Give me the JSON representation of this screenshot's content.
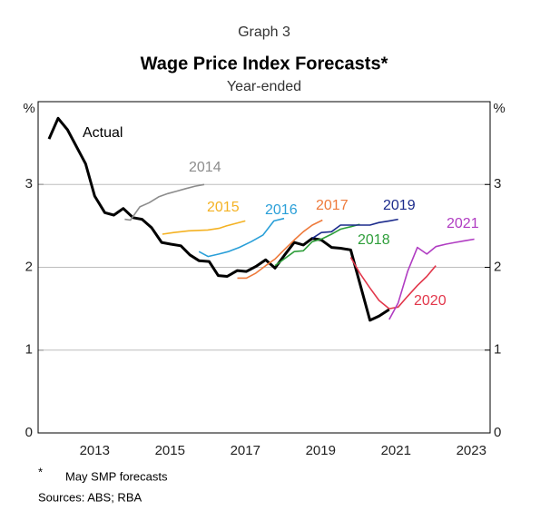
{
  "chart_data": {
    "type": "line",
    "label": "Graph 3",
    "title": "Wage Price Index Forecasts*",
    "subtitle": "Year-ended",
    "ylabel": "%",
    "y2label": "%",
    "xlim": [
      2012,
      2024
    ],
    "xticks": [
      {
        "value": 2013.5,
        "label": "2013"
      },
      {
        "value": 2015.5,
        "label": "2015"
      },
      {
        "value": 2017.5,
        "label": "2017"
      },
      {
        "value": 2019.5,
        "label": "2019"
      },
      {
        "value": 2021.5,
        "label": "2021"
      },
      {
        "value": 2023.5,
        "label": "2023"
      }
    ],
    "ylim": [
      0,
      4
    ],
    "yticks": [
      0,
      1,
      2,
      3
    ],
    "y2lim": [
      0,
      4
    ],
    "y2ticks": [
      0,
      1,
      2,
      3
    ],
    "grid": true,
    "series": [
      {
        "name": "Actual",
        "color": "#000000",
        "x": [
          2012.29,
          2012.53,
          2012.78,
          2013.26,
          2013.5,
          2013.77,
          2014.01,
          2014.26,
          2014.52,
          2014.76,
          2015.01,
          2015.28,
          2015.52,
          2015.79,
          2016.03,
          2016.27,
          2016.54,
          2016.78,
          2017.02,
          2017.29,
          2017.53,
          2017.78,
          2018.04,
          2018.29,
          2018.53,
          2018.8,
          2019.04,
          2019.28,
          2019.52,
          2019.79,
          2020.03,
          2020.3,
          2020.81,
          2021.05,
          2021.32
        ],
        "values": [
          3.55,
          3.8,
          3.66,
          3.25,
          2.86,
          2.66,
          2.63,
          2.71,
          2.6,
          2.58,
          2.48,
          2.3,
          2.28,
          2.26,
          2.15,
          2.08,
          2.07,
          1.9,
          1.89,
          1.96,
          1.95,
          2.01,
          2.09,
          1.99,
          2.14,
          2.3,
          2.27,
          2.35,
          2.33,
          2.24,
          2.23,
          2.21,
          1.36,
          1.41,
          1.49
        ]
      },
      {
        "name": "2014",
        "color": "#8c8c8c",
        "x": [
          2014.3,
          2014.45,
          2014.7,
          2014.95,
          2015.2,
          2015.44,
          2015.68,
          2015.92,
          2016.17,
          2016.41
        ],
        "values": [
          2.58,
          2.57,
          2.73,
          2.78,
          2.85,
          2.89,
          2.92,
          2.95,
          2.98,
          3.0
        ]
      },
      {
        "name": "2015",
        "color": "#f4b223",
        "x": [
          2015.3,
          2015.6,
          2016.0,
          2016.5,
          2016.8,
          2017.0,
          2017.5
        ],
        "values": [
          2.4,
          2.42,
          2.44,
          2.45,
          2.47,
          2.5,
          2.56
        ]
      },
      {
        "name": "2016",
        "color": "#2a9fd8",
        "x": [
          2016.27,
          2016.51,
          2016.8,
          2017.05,
          2017.34,
          2017.66,
          2017.97,
          2018.26,
          2018.53
        ],
        "values": [
          2.19,
          2.13,
          2.16,
          2.19,
          2.24,
          2.31,
          2.39,
          2.56,
          2.59
        ]
      },
      {
        "name": "2017",
        "color": "#ee7a3b",
        "x": [
          2017.29,
          2017.53,
          2017.78,
          2018.04,
          2018.29,
          2018.53,
          2018.8,
          2019.04,
          2019.28,
          2019.55
        ],
        "values": [
          1.87,
          1.87,
          1.93,
          2.02,
          2.1,
          2.21,
          2.33,
          2.43,
          2.51,
          2.57
        ]
      },
      {
        "name": "2018",
        "color": "#2e9e3a",
        "x": [
          2018.29,
          2018.53,
          2018.8,
          2019.04,
          2019.28,
          2019.52,
          2019.79,
          2020.03,
          2020.3,
          2020.54
        ],
        "values": [
          2.02,
          2.1,
          2.19,
          2.2,
          2.31,
          2.34,
          2.4,
          2.46,
          2.49,
          2.52
        ]
      },
      {
        "name": "2019",
        "color": "#1c2b8c",
        "x": [
          2019.28,
          2019.52,
          2019.79,
          2020.03,
          2020.3,
          2020.54,
          2020.81,
          2021.05,
          2021.32,
          2021.56
        ],
        "values": [
          2.35,
          2.42,
          2.43,
          2.51,
          2.51,
          2.51,
          2.51,
          2.54,
          2.56,
          2.58
        ]
      },
      {
        "name": "2020",
        "color": "#e2374b",
        "x": [
          2020.3,
          2020.54,
          2020.81,
          2021.05,
          2021.32,
          2021.56,
          2021.81,
          2022.07,
          2022.32,
          2022.56
        ],
        "values": [
          2.12,
          1.93,
          1.75,
          1.6,
          1.5,
          1.52,
          1.65,
          1.78,
          1.89,
          2.02
        ]
      },
      {
        "name": "2021",
        "color": "#b03cc2",
        "x": [
          2021.32,
          2021.56,
          2021.81,
          2022.07,
          2022.32,
          2022.56,
          2022.83,
          2023.07,
          2023.32,
          2023.58
        ],
        "values": [
          1.37,
          1.57,
          1.95,
          2.24,
          2.16,
          2.25,
          2.28,
          2.3,
          2.32,
          2.34
        ]
      }
    ],
    "footnote_marker": "*",
    "footnote": "May SMP forecasts",
    "sources": "Sources: ABS; RBA"
  }
}
